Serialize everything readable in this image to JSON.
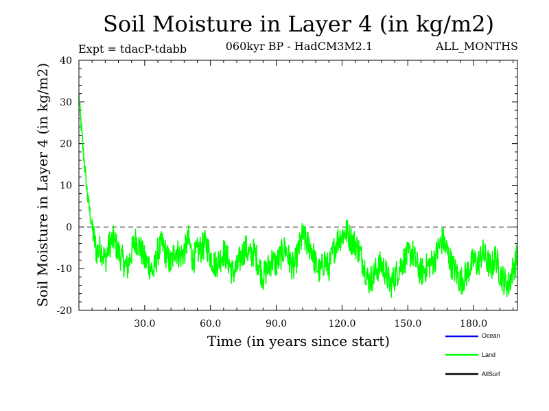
{
  "chart_data": {
    "type": "line",
    "title": "Soil Moisture in Layer 4 (in kg/m2)",
    "subtitle": "060kyr BP - HadCM3M2.1",
    "experiment": "Expt = tdacP-tdabb",
    "period": "ALL_MONTHS",
    "xlabel": "Time (in years since start)",
    "ylabel": "Soil Moisture in Layer 4 (in kg/m2)",
    "xlim": [
      0,
      200
    ],
    "ylim": [
      -20,
      40
    ],
    "x_tick_labels": [
      "30.0",
      "60.0",
      "90.0",
      "120.0",
      "150.0",
      "180.0"
    ],
    "y_tick_labels": [
      "40",
      "30",
      "20",
      "10",
      "0",
      "-10",
      "-20"
    ],
    "reference_line": 0,
    "legend": [
      "Ocean",
      "Land",
      "AllSurf"
    ],
    "colors": {
      "Ocean": "#0000ee",
      "Land": "#00ff00",
      "AllSurf": "#000000"
    },
    "series": [
      {
        "name": "Land",
        "color": "#00ff00",
        "x_step": 2,
        "values": [
          31,
          18,
          7,
          0,
          -6,
          -5,
          -8,
          -4,
          -3,
          -6,
          -8,
          -10,
          -6,
          -3,
          -5,
          -8,
          -9,
          -11,
          -6,
          -4,
          -7,
          -9,
          -5,
          -7,
          -6,
          -3,
          -8,
          -6,
          -5,
          -4,
          -7,
          -9,
          -8,
          -6,
          -8,
          -11,
          -10,
          -7,
          -5,
          -7,
          -6,
          -9,
          -12,
          -10,
          -8,
          -9,
          -7,
          -5,
          -8,
          -10,
          -6,
          -2,
          -4,
          -5,
          -9,
          -11,
          -8,
          -10,
          -6,
          -3,
          -2,
          -1,
          -3,
          -4,
          -6,
          -9,
          -13,
          -12,
          -10,
          -9,
          -11,
          -14,
          -12,
          -10,
          -8,
          -7,
          -6,
          -9,
          -11,
          -10,
          -9,
          -8,
          -5,
          -3,
          -6,
          -9,
          -11,
          -13,
          -12,
          -10,
          -8,
          -9,
          -6,
          -8,
          -10,
          -7,
          -11,
          -13,
          -14,
          -10,
          -7
        ]
      }
    ]
  }
}
